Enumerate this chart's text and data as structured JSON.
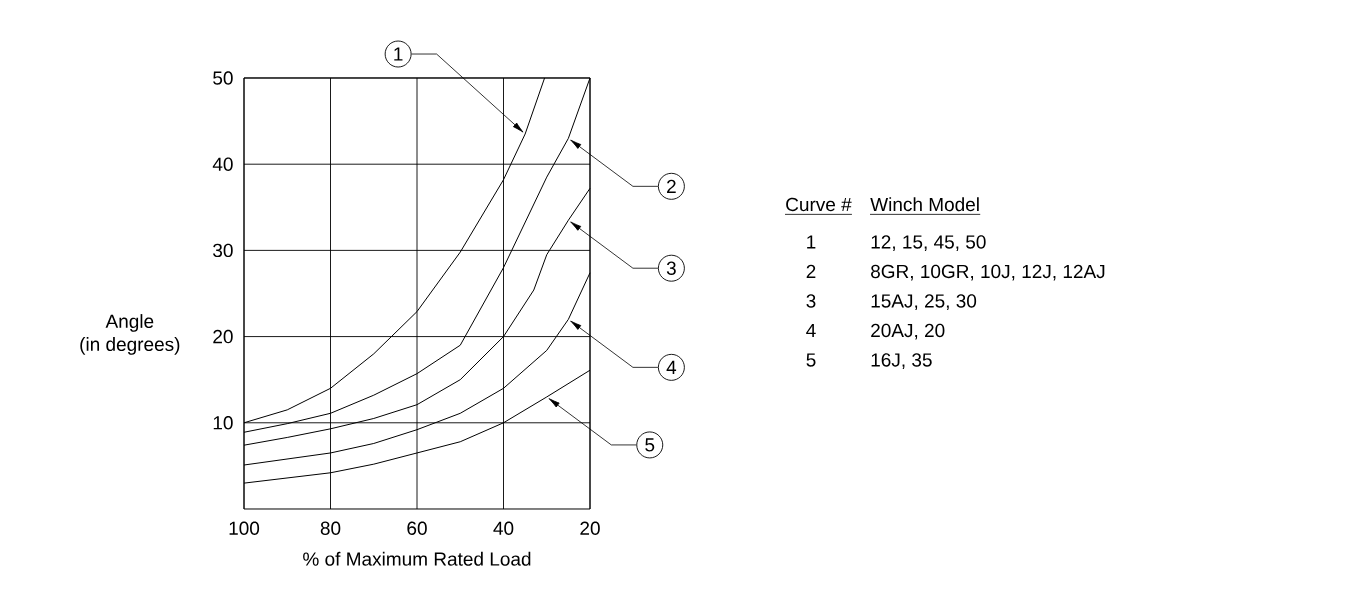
{
  "chart_data": {
    "type": "line",
    "xlabel": "% of Maximum Rated Load",
    "ylabel": "Angle\n(in degrees)",
    "xlim": [
      100,
      20
    ],
    "ylim": [
      0,
      50
    ],
    "xticks": [
      100,
      80,
      60,
      40,
      20
    ],
    "yticks": [
      10,
      20,
      30,
      40,
      50
    ],
    "grid": true,
    "legend": "right",
    "marker": "none",
    "line_style": "solid",
    "series": [
      {
        "name": "1",
        "color": "#000000",
        "x": [
          100,
          90,
          80,
          70,
          60,
          50,
          40,
          35,
          30.5
        ],
        "values": [
          10,
          11.5,
          14,
          18,
          22.9,
          29.8,
          38.2,
          43.5,
          50
        ]
      },
      {
        "name": "2",
        "color": "#000000",
        "x": [
          100,
          90,
          80,
          70,
          60,
          50,
          40,
          30,
          25,
          20
        ],
        "values": [
          8.9,
          9.9,
          11.1,
          13.2,
          15.7,
          19,
          28,
          38.5,
          43,
          50
        ]
      },
      {
        "name": "3",
        "color": "#000000",
        "x": [
          100,
          90,
          80,
          70,
          60,
          50,
          40,
          33,
          30,
          25,
          20
        ],
        "values": [
          7.4,
          8.3,
          9.3,
          10.5,
          12.1,
          15,
          20,
          25.4,
          29.5,
          33.5,
          37.2
        ]
      },
      {
        "name": "4",
        "color": "#000000",
        "x": [
          100,
          90,
          80,
          70,
          60,
          50,
          40,
          30,
          25,
          20
        ],
        "values": [
          5.1,
          5.8,
          6.5,
          7.6,
          9.2,
          11.1,
          14,
          18.4,
          22,
          27.4
        ]
      },
      {
        "name": "5",
        "color": "#000000",
        "x": [
          100,
          90,
          80,
          70,
          60,
          50,
          40,
          30,
          20
        ],
        "values": [
          3,
          3.6,
          4.2,
          5.2,
          6.5,
          7.8,
          10,
          13,
          16.1
        ]
      }
    ],
    "annotations": [
      "Curve #",
      "Winch Model",
      "1",
      "12, 15, 45, 50",
      "2",
      "8GR, 10GR, 10J, 12J, 12AJ",
      "3",
      "15AJ, 25, 30",
      "4",
      "20AJ, 20",
      "5",
      "16J, 35"
    ]
  }
}
